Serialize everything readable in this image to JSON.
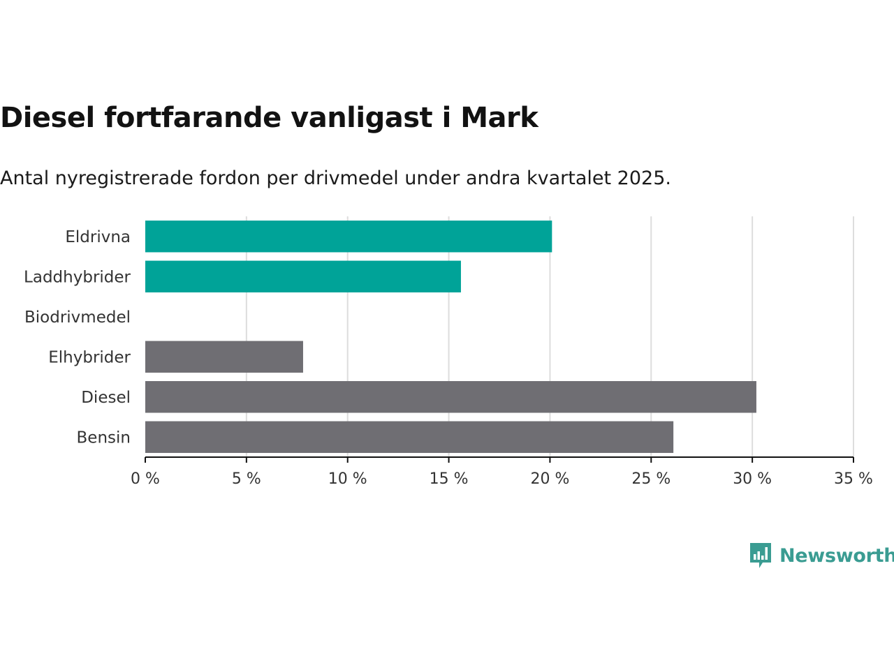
{
  "title": "Diesel fortfarande vanligast i Mark",
  "subtitle": "Antal nyregistrerade fordon per drivmedel under andra kvartalet 2025.",
  "brand": {
    "name": "Newsworthy",
    "icon": "newsworthy-logo-icon",
    "color": "#3a9c92"
  },
  "colors": {
    "highlight": "#00a398",
    "default": "#6f6e73",
    "grid": "#dddddd",
    "axis": "#111111"
  },
  "chart_data": {
    "type": "bar",
    "orientation": "horizontal",
    "title": "Diesel fortfarande vanligast i Mark",
    "subtitle": "Antal nyregistrerade fordon per drivmedel under andra kvartalet 2025.",
    "categories": [
      "Eldrivna",
      "Laddhybrider",
      "Biodrivmedel",
      "Elhybrider",
      "Diesel",
      "Bensin"
    ],
    "values": [
      20.1,
      15.6,
      0,
      7.8,
      30.2,
      26.1
    ],
    "bar_colors": [
      "#00a398",
      "#00a398",
      "#00a398",
      "#6f6e73",
      "#6f6e73",
      "#6f6e73"
    ],
    "xlim": [
      0,
      35
    ],
    "x_ticks": [
      0,
      5,
      10,
      15,
      20,
      25,
      30,
      35
    ],
    "x_tick_labels": [
      "0 %",
      "5 %",
      "10 %",
      "15 %",
      "20 %",
      "25 %",
      "30 %",
      "35 %"
    ],
    "unit": "%",
    "grid": true,
    "xlabel": "",
    "ylabel": ""
  }
}
